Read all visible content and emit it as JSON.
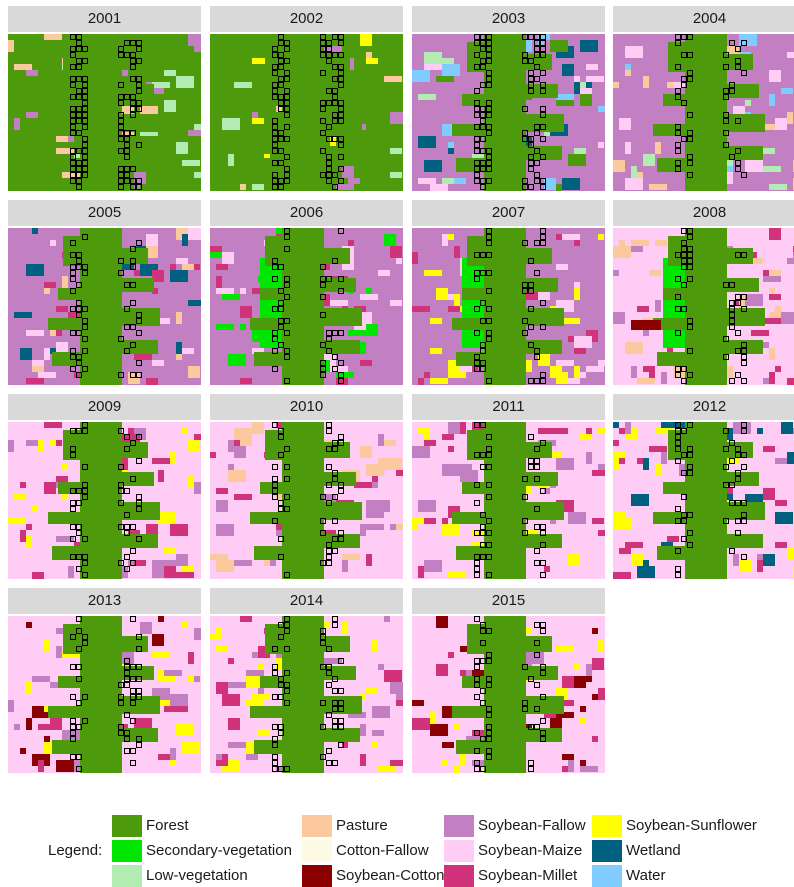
{
  "panels": [
    {
      "year": "2001"
    },
    {
      "year": "2002"
    },
    {
      "year": "2003"
    },
    {
      "year": "2004"
    },
    {
      "year": "2005"
    },
    {
      "year": "2006"
    },
    {
      "year": "2007"
    },
    {
      "year": "2008"
    },
    {
      "year": "2009"
    },
    {
      "year": "2010"
    },
    {
      "year": "2011"
    },
    {
      "year": "2012"
    },
    {
      "year": "2013"
    },
    {
      "year": "2014"
    },
    {
      "year": "2015"
    }
  ],
  "legend": {
    "title": "Legend:",
    "items": [
      {
        "label": "Forest",
        "color": "#4d9a0c"
      },
      {
        "label": "Secondary-vegetation",
        "color": "#00e600"
      },
      {
        "label": "Low-vegetation",
        "color": "#b3ecb3"
      },
      {
        "label": "Pasture",
        "color": "#fcc89e"
      },
      {
        "label": "Cotton-Fallow",
        "color": "#fdfbe6"
      },
      {
        "label": "Soybean-Cotton",
        "color": "#8b0000"
      },
      {
        "label": "Soybean-Fallow",
        "color": "#c280c2"
      },
      {
        "label": "Soybean-Maize",
        "color": "#ffccf5"
      },
      {
        "label": "Soybean-Millet",
        "color": "#d0337a"
      },
      {
        "label": "Soybean-Sunflower",
        "color": "#ffff00"
      },
      {
        "label": "Wetland",
        "color": "#006080"
      },
      {
        "label": "Water",
        "color": "#80ccff"
      }
    ]
  }
}
